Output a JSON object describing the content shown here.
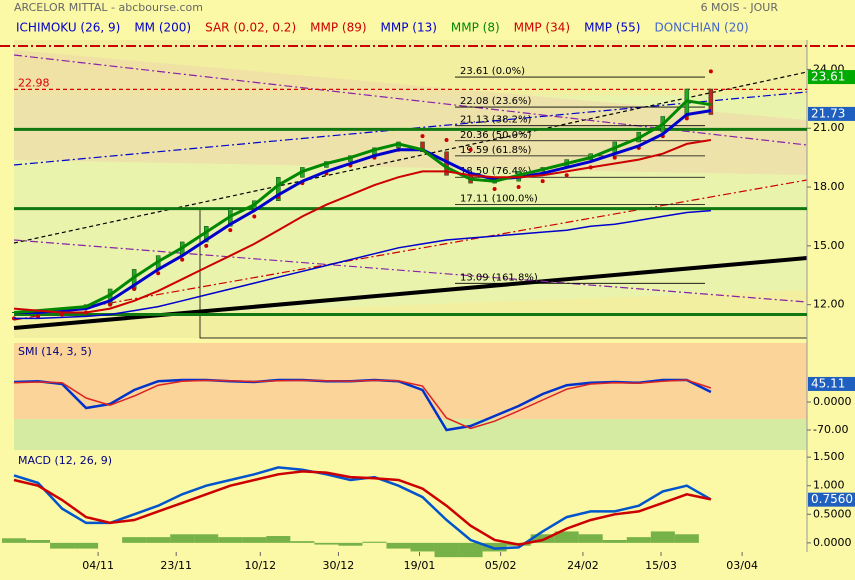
{
  "header": {
    "title": "ARCELOR MITTAL - abcbourse.com",
    "period": "6 MOIS - JOUR"
  },
  "chart_data": [
    {
      "type": "line",
      "x": [
        0,
        4,
        8,
        12,
        16,
        20,
        24,
        28,
        32,
        36,
        40,
        44,
        48,
        52,
        56,
        60,
        64,
        68,
        72,
        76,
        80,
        84,
        88,
        92,
        96,
        100,
        104,
        108,
        112,
        116
      ],
      "xlim": [
        0,
        132
      ],
      "ylim": [
        10.3,
        25.5
      ],
      "yticks": [
        {
          "value": 12,
          "label": "12.00"
        },
        {
          "value": 15,
          "label": "15.00"
        },
        {
          "value": 18,
          "label": "18.00"
        },
        {
          "value": 21,
          "label": "21.00"
        },
        {
          "value": 24,
          "label": "24.00"
        }
      ],
      "close": [
        11.6,
        11.7,
        11.8,
        12.0,
        12.8,
        13.8,
        14.5,
        15.2,
        16.0,
        16.9,
        17.3,
        18.5,
        19.0,
        19.3,
        19.6,
        20.0,
        20.3,
        19.8,
        18.6,
        18.2,
        18.3,
        18.8,
        19.0,
        19.4,
        19.7,
        20.3,
        20.8,
        21.6,
        23.0,
        21.7
      ],
      "series": [
        {
          "name": "ICHIMOKU (26, 9)",
          "color": "#0000cc"
        },
        {
          "name": "MM (200)",
          "color": "#0000cc"
        },
        {
          "name": "SAR (0.02, 0.2)",
          "color": "#cc0000",
          "style": "dots",
          "values": [
            11.3,
            11.4,
            11.5,
            11.6,
            12.0,
            12.8,
            13.6,
            14.3,
            15.0,
            15.8,
            16.5,
            17.5,
            18.2,
            18.7,
            19.1,
            19.5,
            19.9,
            20.6,
            20.4,
            19.9,
            17.9,
            18.0,
            18.3,
            18.6,
            19.0,
            19.5,
            20.0,
            20.6,
            21.5,
            23.9
          ]
        },
        {
          "name": "MMP (89)",
          "color": "#cc0000"
        },
        {
          "name": "MMP (13)",
          "color": "#0000cc",
          "width": 3,
          "values": [
            11.6,
            11.6,
            11.7,
            11.8,
            12.2,
            13.0,
            13.8,
            14.5,
            15.3,
            16.1,
            16.8,
            17.6,
            18.3,
            18.8,
            19.2,
            19.6,
            19.9,
            19.9,
            19.3,
            18.7,
            18.4,
            18.5,
            18.7,
            19.0,
            19.3,
            19.7,
            20.1,
            20.7,
            21.7,
            21.9
          ]
        },
        {
          "name": "MMP (8)",
          "color": "#008800",
          "width": 3,
          "values": [
            11.6,
            11.7,
            11.8,
            11.9,
            12.5,
            13.4,
            14.2,
            14.9,
            15.7,
            16.5,
            17.1,
            18.1,
            18.8,
            19.2,
            19.5,
            19.9,
            20.2,
            19.9,
            19.0,
            18.4,
            18.3,
            18.6,
            18.9,
            19.2,
            19.5,
            20.0,
            20.5,
            21.2,
            22.4,
            22.2
          ]
        },
        {
          "name": "MMP (34)",
          "color": "#cc0000",
          "width": 2,
          "values": [
            11.8,
            11.7,
            11.6,
            11.6,
            11.8,
            12.2,
            12.7,
            13.3,
            13.9,
            14.5,
            15.1,
            15.8,
            16.5,
            17.1,
            17.6,
            18.1,
            18.5,
            18.8,
            18.8,
            18.6,
            18.5,
            18.5,
            18.6,
            18.8,
            19.0,
            19.2,
            19.4,
            19.7,
            20.2,
            20.4
          ]
        },
        {
          "name": "MMP (55)",
          "color": "#0000cc",
          "width": 1.5,
          "values": [
            11.3,
            11.3,
            11.35,
            11.4,
            11.5,
            11.7,
            11.9,
            12.2,
            12.5,
            12.8,
            13.1,
            13.4,
            13.7,
            14.0,
            14.3,
            14.6,
            14.9,
            15.1,
            15.3,
            15.4,
            15.5,
            15.6,
            15.7,
            15.8,
            16.0,
            16.1,
            16.3,
            16.5,
            16.7,
            16.8
          ]
        },
        {
          "name": "DONCHIAN (20)",
          "color": "#4466cc"
        }
      ],
      "levels": [
        {
          "value": 23.61,
          "label": "23.61 (0.0%)"
        },
        {
          "value": 22.08,
          "label": "22.08 (23.6%)"
        },
        {
          "value": 21.13,
          "label": "21.13 (38.2%)"
        },
        {
          "value": 20.36,
          "label": "20.36 (50.0%)"
        },
        {
          "value": 19.59,
          "label": "19.59 (61.8%)"
        },
        {
          "value": 18.5,
          "label": "18.50 (76.4%)"
        },
        {
          "value": 17.11,
          "label": "17.11 (100.0%)"
        },
        {
          "value": 13.09,
          "label": "13.09 (161.8%)"
        }
      ],
      "reference_line": 22.98,
      "support_lines": [
        20.94,
        16.9,
        11.5
      ],
      "price_tags": [
        {
          "value": 23.61,
          "color": "#00aa00"
        },
        {
          "value": 21.73,
          "color": "#1f5fbf"
        }
      ]
    },
    {
      "type": "line",
      "title": "SMI (14, 3, 5)",
      "x": [
        0,
        4,
        8,
        12,
        16,
        20,
        24,
        28,
        32,
        36,
        40,
        44,
        48,
        52,
        56,
        60,
        64,
        68,
        72,
        76,
        80,
        84,
        88,
        92,
        96,
        100,
        104,
        108,
        112,
        116
      ],
      "xlim": [
        0,
        132
      ],
      "ylim": [
        -120,
        147.5
      ],
      "yticks": [
        {
          "value": -70,
          "label": "-70.00"
        },
        {
          "value": 0,
          "label": "0.0000"
        }
      ],
      "series": [
        {
          "color": "#0033cc",
          "width": 2.5,
          "values": [
            50,
            52,
            45,
            -15,
            -5,
            30,
            52,
            55,
            55,
            52,
            50,
            55,
            55,
            52,
            52,
            55,
            52,
            30,
            -70,
            -60,
            -35,
            -10,
            20,
            42,
            48,
            50,
            48,
            55,
            55,
            25
          ]
        },
        {
          "color": "#dd2222",
          "width": 1.5,
          "values": [
            48,
            50,
            48,
            10,
            -8,
            15,
            42,
            52,
            54,
            53,
            51,
            53,
            54,
            53,
            52,
            54,
            53,
            40,
            -40,
            -66,
            -48,
            -22,
            5,
            32,
            45,
            48,
            47,
            52,
            55,
            35
          ]
        }
      ],
      "price_tags": [
        {
          "value": 45.11,
          "color": "#1f5fbf"
        }
      ]
    },
    {
      "type": "line",
      "title": "MACD (12, 26, 9)",
      "x": [
        0,
        4,
        8,
        12,
        16,
        20,
        24,
        28,
        32,
        36,
        40,
        44,
        48,
        52,
        56,
        60,
        64,
        68,
        72,
        76,
        80,
        84,
        88,
        92,
        96,
        100,
        104,
        108,
        112,
        116
      ],
      "xlim": [
        0,
        132
      ],
      "ylim": [
        -0.16,
        1.59
      ],
      "yticks": [
        {
          "value": 0,
          "label": "0.0000"
        },
        {
          "value": 0.5,
          "label": "0.5000"
        },
        {
          "value": 1,
          "label": "1.000"
        },
        {
          "value": 1.5,
          "label": "1.500"
        }
      ],
      "xticks": [
        {
          "value": 14,
          "label": "04/11"
        },
        {
          "value": 27,
          "label": "23/11"
        },
        {
          "value": 41,
          "label": "10/12"
        },
        {
          "value": 54,
          "label": "30/12"
        },
        {
          "value": 67.5,
          "label": "19/01"
        },
        {
          "value": 81,
          "label": "05/02"
        },
        {
          "value": 94.7,
          "label": "24/02"
        },
        {
          "value": 107.7,
          "label": "15/03"
        },
        {
          "value": 121.2,
          "label": "03/04"
        }
      ],
      "histogram": {
        "color": "#55a032",
        "values": [
          0.08,
          0.05,
          -0.1,
          -0.1,
          0.0,
          0.1,
          0.1,
          0.15,
          0.15,
          0.1,
          0.1,
          0.12,
          0.03,
          -0.03,
          -0.05,
          0.02,
          -0.1,
          -0.15,
          -0.25,
          -0.25,
          -0.15,
          -0.05,
          0.15,
          0.2,
          0.15,
          0.05,
          0.1,
          0.2,
          0.15,
          0.0
        ]
      },
      "series": [
        {
          "color": "#0055cc",
          "width": 2.5,
          "values": [
            1.18,
            1.05,
            0.6,
            0.35,
            0.35,
            0.5,
            0.65,
            0.85,
            1.0,
            1.1,
            1.2,
            1.32,
            1.28,
            1.2,
            1.1,
            1.15,
            1.0,
            0.8,
            0.4,
            0.05,
            -0.1,
            -0.08,
            0.2,
            0.45,
            0.55,
            0.55,
            0.65,
            0.9,
            1.0,
            0.76
          ]
        },
        {
          "color": "#cc0000",
          "width": 2.5,
          "values": [
            1.1,
            1.0,
            0.75,
            0.45,
            0.35,
            0.4,
            0.55,
            0.7,
            0.85,
            1.0,
            1.1,
            1.2,
            1.25,
            1.23,
            1.15,
            1.13,
            1.1,
            0.95,
            0.65,
            0.3,
            0.05,
            -0.03,
            0.05,
            0.25,
            0.4,
            0.5,
            0.55,
            0.7,
            0.85,
            0.76
          ]
        }
      ],
      "price_tags": [
        {
          "value": 0.756,
          "label": "0.7560",
          "color": "#1f5fbf"
        }
      ]
    }
  ]
}
